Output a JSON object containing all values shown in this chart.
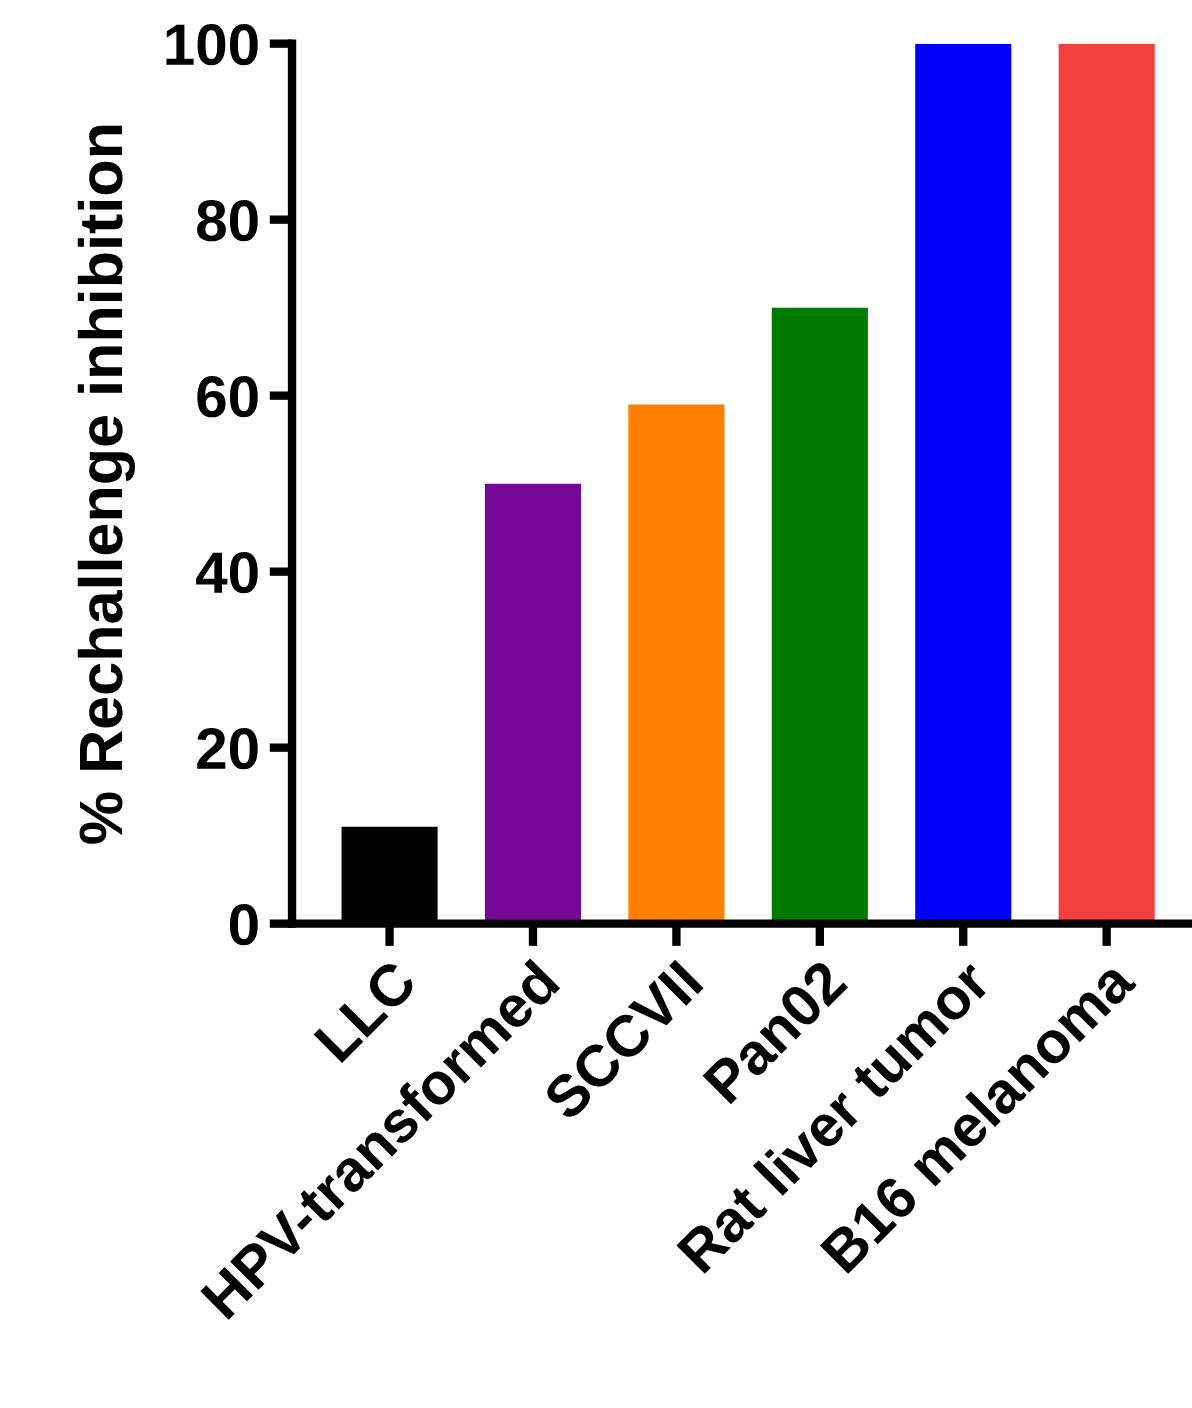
{
  "chart_data": {
    "type": "bar",
    "ylabel": "% Rechallenge inhibition",
    "categories": [
      "LLC",
      "HPV-transformed",
      "SCCVII",
      "Pan02",
      "Rat liver tumor",
      "B16 melanoma"
    ],
    "values": [
      11,
      50,
      59,
      70,
      100,
      100
    ],
    "colors": [
      "#000000",
      "#750896",
      "#ff8000",
      "#007a00",
      "#0000ff",
      "#f54040"
    ],
    "ylim": [
      0,
      100
    ],
    "yticks": [
      0,
      20,
      40,
      60,
      80,
      100
    ],
    "grid": false
  }
}
